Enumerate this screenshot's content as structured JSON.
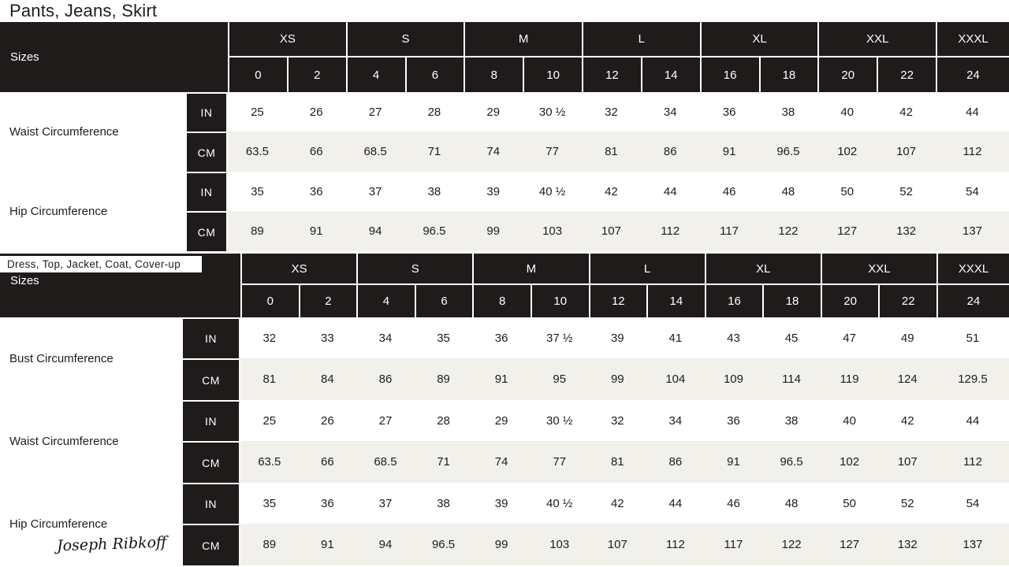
{
  "titles": {
    "table1": "Pants, Jeans, Skirt",
    "table2": "Dress, Top, Jacket, Coat, Cover-up"
  },
  "brand": {
    "name": "Joseph Ribkoff"
  },
  "units": {
    "in": "IN",
    "cm": "CM"
  },
  "sizes_header": {
    "label": "Sizes",
    "groups": [
      {
        "label": "XS",
        "span": 2
      },
      {
        "label": "S",
        "span": 2
      },
      {
        "label": "M",
        "span": 2
      },
      {
        "label": "L",
        "span": 2
      },
      {
        "label": "XL",
        "span": 2
      },
      {
        "label": "XXL",
        "span": 2
      },
      {
        "label": "XXXL",
        "span": 1
      }
    ],
    "numeric_sizes": [
      "0",
      "2",
      "4",
      "6",
      "8",
      "10",
      "12",
      "14",
      "16",
      "18",
      "20",
      "22",
      "24"
    ]
  },
  "table1": {
    "rows": [
      {
        "label": "Waist Circumference",
        "in": [
          "25",
          "26",
          "27",
          "28",
          "29",
          "30 ½",
          "32",
          "34",
          "36",
          "38",
          "40",
          "42",
          "44"
        ],
        "cm": [
          "63.5",
          "66",
          "68.5",
          "71",
          "74",
          "77",
          "81",
          "86",
          "91",
          "96.5",
          "102",
          "107",
          "112"
        ]
      },
      {
        "label": "Hip Circumference",
        "in": [
          "35",
          "36",
          "37",
          "38",
          "39",
          "40 ½",
          "42",
          "44",
          "46",
          "48",
          "50",
          "52",
          "54"
        ],
        "cm": [
          "89",
          "91",
          "94",
          "96.5",
          "99",
          "103",
          "107",
          "112",
          "117",
          "122",
          "127",
          "132",
          "137"
        ]
      }
    ]
  },
  "table2": {
    "rows": [
      {
        "label": "Bust Circumference",
        "in": [
          "32",
          "33",
          "34",
          "35",
          "36",
          "37 ½",
          "39",
          "41",
          "43",
          "45",
          "47",
          "49",
          "51"
        ],
        "cm": [
          "81",
          "84",
          "86",
          "89",
          "91",
          "95",
          "99",
          "104",
          "109",
          "114",
          "119",
          "124",
          "129.5"
        ]
      },
      {
        "label": "Waist Circumference",
        "in": [
          "25",
          "26",
          "27",
          "28",
          "29",
          "30 ½",
          "32",
          "34",
          "36",
          "38",
          "40",
          "42",
          "44"
        ],
        "cm": [
          "63.5",
          "66",
          "68.5",
          "71",
          "74",
          "77",
          "81",
          "86",
          "91",
          "96.5",
          "102",
          "107",
          "112"
        ]
      },
      {
        "label": "Hip Circumference",
        "in": [
          "35",
          "36",
          "37",
          "38",
          "39",
          "40 ½",
          "42",
          "44",
          "46",
          "48",
          "50",
          "52",
          "54"
        ],
        "cm": [
          "89",
          "91",
          "94",
          "96.5",
          "99",
          "103",
          "107",
          "112",
          "117",
          "122",
          "127",
          "132",
          "137"
        ]
      }
    ]
  },
  "colors": {
    "header_bg": "#1e1b1a",
    "shade_row_bg": "#f1f0eb",
    "text": "#1d1d1d",
    "header_text": "#ffffff",
    "grid_line": "#ffffff"
  }
}
